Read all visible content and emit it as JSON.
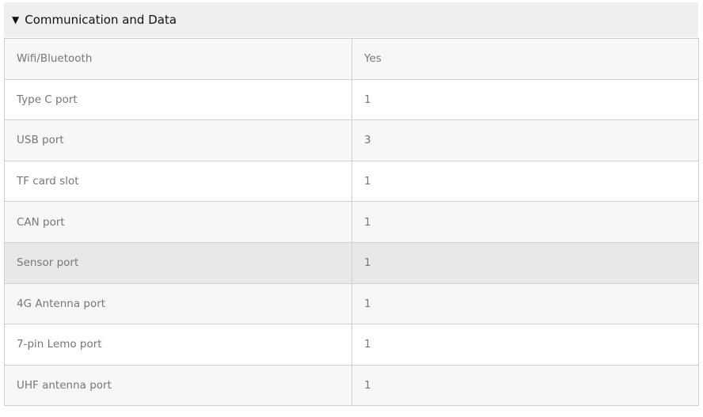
{
  "section": {
    "title": "Communication and Data",
    "expanded": true,
    "toggle_icon": "triangle-down-icon"
  },
  "rows": [
    {
      "label": "Wifi/Bluetooth",
      "value": "Yes"
    },
    {
      "label": "Type C port",
      "value": "1"
    },
    {
      "label": "USB port",
      "value": "3"
    },
    {
      "label": "TF card slot",
      "value": "1"
    },
    {
      "label": "CAN port",
      "value": "1"
    },
    {
      "label": "Sensor port",
      "value": "1"
    },
    {
      "label": "4G Antenna port",
      "value": "1"
    },
    {
      "label": "7-pin Lemo port",
      "value": "1"
    },
    {
      "label": "UHF antenna port",
      "value": "1"
    }
  ]
}
